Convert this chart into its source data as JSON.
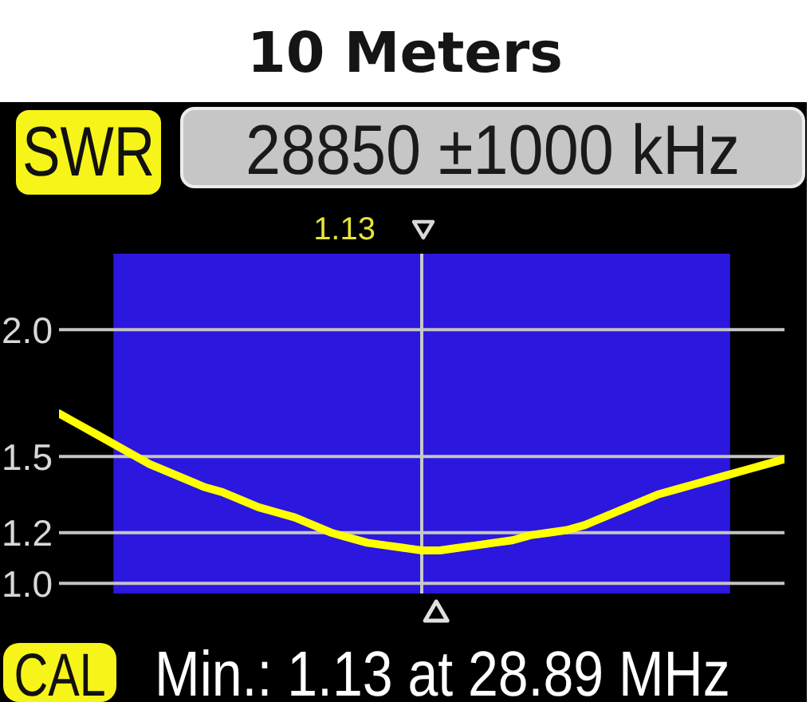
{
  "chart_data": {
    "type": "line",
    "title": "10 Meters",
    "subtitle": "28850 ±1000 kHz",
    "ylabel": "SWR",
    "annotations": [
      "CAL",
      "1.13",
      "Min.: 1.13 at 28.89 MHz"
    ],
    "categories": [
      null,
      null,
      null,
      null,
      null,
      null,
      null,
      null,
      null,
      null,
      null,
      null,
      null,
      null,
      null,
      null,
      null,
      null,
      null,
      null,
      null,
      null,
      null,
      null,
      null,
      null,
      null,
      null,
      null,
      null,
      null,
      null,
      null,
      null,
      null,
      null,
      null,
      null,
      null,
      null,
      null
    ],
    "values": [
      1.67,
      1.63,
      1.59,
      1.55,
      1.51,
      1.47,
      1.44,
      1.41,
      1.38,
      1.36,
      1.33,
      1.3,
      1.28,
      1.26,
      1.23,
      1.2,
      1.18,
      1.16,
      1.15,
      1.14,
      1.13,
      1.13,
      1.14,
      1.15,
      1.16,
      1.17,
      1.19,
      1.2,
      1.21,
      1.23,
      1.26,
      1.29,
      1.32,
      1.35,
      1.37,
      1.39,
      1.41,
      1.43,
      1.45,
      1.47,
      1.49
    ],
    "color": "#ffff00",
    "ylim": [
      0.96,
      2.3
    ],
    "yticks": [
      {
        "value": 1,
        "label": "1.0"
      },
      1.2,
      1.5,
      {
        "value": 2,
        "label": "2.0"
      }
    ],
    "grid": "y",
    "tick_labels": "y"
  }
}
